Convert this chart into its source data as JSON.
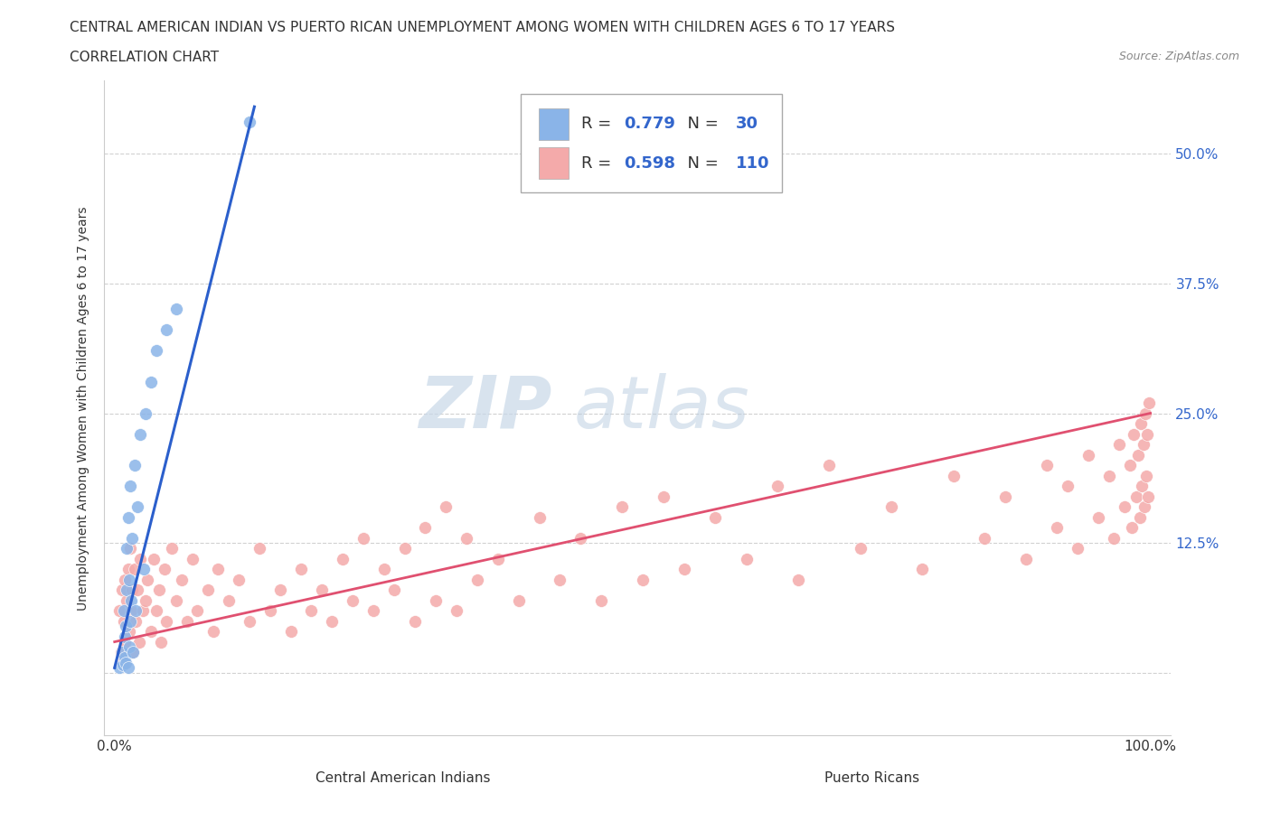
{
  "title_line1": "CENTRAL AMERICAN INDIAN VS PUERTO RICAN UNEMPLOYMENT AMONG WOMEN WITH CHILDREN AGES 6 TO 17 YEARS",
  "title_line2": "CORRELATION CHART",
  "source_text": "Source: ZipAtlas.com",
  "ylabel": "Unemployment Among Women with Children Ages 6 to 17 years",
  "xlim": [
    -0.01,
    1.02
  ],
  "ylim": [
    -0.06,
    0.57
  ],
  "xtick_positions": [
    0.0,
    0.125,
    0.25,
    0.375,
    0.5,
    0.625,
    0.75,
    0.875,
    1.0
  ],
  "xticklabels": [
    "0.0%",
    "",
    "",
    "",
    "",
    "",
    "",
    "",
    "100.0%"
  ],
  "ytick_positions": [
    0.0,
    0.125,
    0.25,
    0.375,
    0.5
  ],
  "yticklabels_right": [
    "",
    "12.5%",
    "25.0%",
    "37.5%",
    "50.0%"
  ],
  "legend_label1": "Central American Indians",
  "legend_label2": "Puerto Ricans",
  "R1": "0.779",
  "N1": "30",
  "R2": "0.598",
  "N2": "110",
  "color_blue": "#8AB4E8",
  "color_blue_line": "#2B5FCC",
  "color_pink": "#F4AAAA",
  "color_pink_line": "#E05070",
  "watermark_zip": "ZIP",
  "watermark_atlas": "atlas",
  "blue_scatter_x": [
    0.005,
    0.007,
    0.008,
    0.009,
    0.01,
    0.01,
    0.011,
    0.011,
    0.012,
    0.012,
    0.013,
    0.013,
    0.014,
    0.014,
    0.015,
    0.015,
    0.016,
    0.017,
    0.018,
    0.019,
    0.02,
    0.022,
    0.025,
    0.028,
    0.03,
    0.035,
    0.04,
    0.05,
    0.06,
    0.13
  ],
  "blue_scatter_y": [
    0.005,
    0.02,
    0.008,
    0.06,
    0.015,
    0.035,
    0.01,
    0.045,
    0.08,
    0.12,
    0.005,
    0.15,
    0.025,
    0.09,
    0.05,
    0.18,
    0.07,
    0.13,
    0.02,
    0.2,
    0.06,
    0.16,
    0.23,
    0.1,
    0.25,
    0.28,
    0.31,
    0.33,
    0.35,
    0.53
  ],
  "blue_trend_x": [
    0.0,
    0.135
  ],
  "blue_trend_y": [
    0.005,
    0.545
  ],
  "pink_scatter_x": [
    0.005,
    0.006,
    0.007,
    0.008,
    0.009,
    0.01,
    0.01,
    0.012,
    0.013,
    0.014,
    0.015,
    0.016,
    0.017,
    0.018,
    0.019,
    0.02,
    0.022,
    0.024,
    0.025,
    0.027,
    0.03,
    0.032,
    0.035,
    0.038,
    0.04,
    0.043,
    0.045,
    0.048,
    0.05,
    0.055,
    0.06,
    0.065,
    0.07,
    0.075,
    0.08,
    0.09,
    0.095,
    0.1,
    0.11,
    0.12,
    0.13,
    0.14,
    0.15,
    0.16,
    0.17,
    0.18,
    0.19,
    0.2,
    0.21,
    0.22,
    0.23,
    0.24,
    0.25,
    0.26,
    0.27,
    0.28,
    0.29,
    0.3,
    0.31,
    0.32,
    0.33,
    0.34,
    0.35,
    0.37,
    0.39,
    0.41,
    0.43,
    0.45,
    0.47,
    0.49,
    0.51,
    0.53,
    0.55,
    0.58,
    0.61,
    0.64,
    0.66,
    0.69,
    0.72,
    0.75,
    0.78,
    0.81,
    0.84,
    0.86,
    0.88,
    0.9,
    0.91,
    0.92,
    0.93,
    0.94,
    0.95,
    0.96,
    0.965,
    0.97,
    0.975,
    0.98,
    0.982,
    0.984,
    0.986,
    0.988,
    0.99,
    0.991,
    0.992,
    0.993,
    0.994,
    0.995,
    0.996,
    0.997,
    0.998,
    0.999
  ],
  "pink_scatter_y": [
    0.06,
    0.02,
    0.08,
    0.01,
    0.05,
    0.09,
    0.03,
    0.07,
    0.1,
    0.04,
    0.12,
    0.06,
    0.08,
    0.02,
    0.1,
    0.05,
    0.08,
    0.03,
    0.11,
    0.06,
    0.07,
    0.09,
    0.04,
    0.11,
    0.06,
    0.08,
    0.03,
    0.1,
    0.05,
    0.12,
    0.07,
    0.09,
    0.05,
    0.11,
    0.06,
    0.08,
    0.04,
    0.1,
    0.07,
    0.09,
    0.05,
    0.12,
    0.06,
    0.08,
    0.04,
    0.1,
    0.06,
    0.08,
    0.05,
    0.11,
    0.07,
    0.13,
    0.06,
    0.1,
    0.08,
    0.12,
    0.05,
    0.14,
    0.07,
    0.16,
    0.06,
    0.13,
    0.09,
    0.11,
    0.07,
    0.15,
    0.09,
    0.13,
    0.07,
    0.16,
    0.09,
    0.17,
    0.1,
    0.15,
    0.11,
    0.18,
    0.09,
    0.2,
    0.12,
    0.16,
    0.1,
    0.19,
    0.13,
    0.17,
    0.11,
    0.2,
    0.14,
    0.18,
    0.12,
    0.21,
    0.15,
    0.19,
    0.13,
    0.22,
    0.16,
    0.2,
    0.14,
    0.23,
    0.17,
    0.21,
    0.15,
    0.24,
    0.18,
    0.22,
    0.16,
    0.25,
    0.19,
    0.23,
    0.17,
    0.26
  ],
  "pink_trend_x": [
    0.0,
    1.0
  ],
  "pink_trend_y": [
    0.03,
    0.25
  ],
  "grid_color": "#CCCCCC",
  "spine_color": "#CCCCCC"
}
